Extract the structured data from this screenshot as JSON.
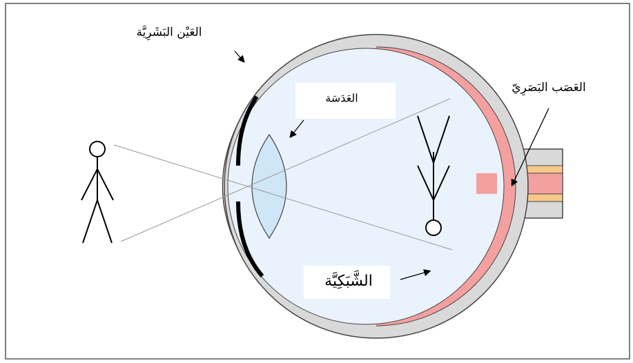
{
  "diagram": {
    "labels": {
      "eye": "العَيْن البَشَرِيَّة",
      "lens": "العَدَسَة",
      "optic_nerve": "العَصَب البَصَرِيّ",
      "retina": "الشَّبَكِيَّة"
    }
  }
}
